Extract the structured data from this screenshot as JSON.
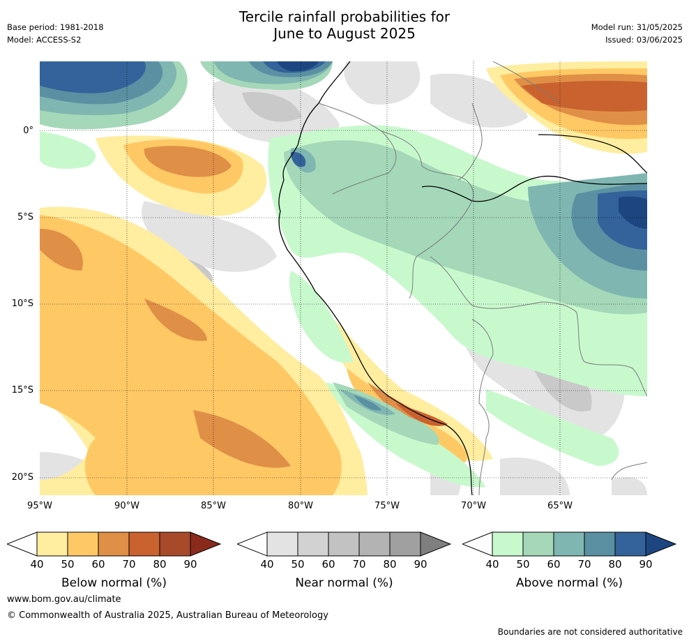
{
  "header": {
    "title_line1": "Tercile rainfall probabilities for",
    "title_line2": "June to August 2025",
    "base_period": "Base period: 1981-2018",
    "model": "Model: ACCESS-S2",
    "model_run": "Model run: 31/05/2025",
    "issued": "Issued: 03/06/2025"
  },
  "map": {
    "lat_labels": [
      "0°",
      "5°S",
      "10°S",
      "15°S",
      "20°S"
    ],
    "lon_labels": [
      "95°W",
      "90°W",
      "85°W",
      "80°W",
      "75°W",
      "70°W",
      "65°W"
    ]
  },
  "colorbars": [
    {
      "title": "Below normal (%)",
      "ticks": [
        "40",
        "50",
        "60",
        "70",
        "80",
        "90"
      ],
      "colors": [
        "#ffeda0",
        "#fec965",
        "#e08f47",
        "#c9622f",
        "#a84a2a",
        "#8a2a1c"
      ]
    },
    {
      "title": "Near normal (%)",
      "ticks": [
        "40",
        "50",
        "60",
        "70",
        "80",
        "90"
      ],
      "colors": [
        "#e3e3e3",
        "#d2d2d2",
        "#c2c2c2",
        "#b3b3b3",
        "#a0a0a0",
        "#7f7f7f"
      ]
    },
    {
      "title": "Above normal (%)",
      "ticks": [
        "40",
        "50",
        "60",
        "70",
        "80",
        "90"
      ],
      "colors": [
        "#c8f9cd",
        "#a4d8b8",
        "#7fb6b1",
        "#5a90a2",
        "#33639a",
        "#1d4680"
      ]
    }
  ],
  "footer": {
    "url": "www.bom.gov.au/climate",
    "copyright": "© Commonwealth of Australia 2025, Australian Bureau of Meteorology",
    "disclaimer": "Boundaries are not considered authoritative"
  }
}
